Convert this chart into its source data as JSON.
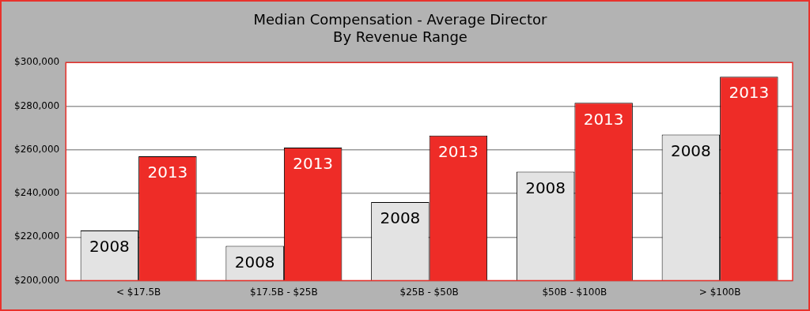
{
  "chart_data": {
    "type": "bar",
    "title": "Median Compensation - Average Director\nBy Revenue Range",
    "categories": [
      "< $17.5B",
      "$17.5B - $25B",
      "$25B - $50B",
      "$50B - $100B",
      "> $100B"
    ],
    "series": [
      {
        "name": "2008",
        "color": "#e3e3e3",
        "values": [
          223000,
          216000,
          236000,
          250000,
          267000
        ]
      },
      {
        "name": "2013",
        "color": "#ee2c27",
        "values": [
          257000,
          261000,
          266500,
          281500,
          293500
        ]
      }
    ],
    "ylim": [
      200000,
      300000
    ],
    "yticks": [
      {
        "value": 200000,
        "label": "$200,000"
      },
      {
        "value": 220000,
        "label": "$220,000"
      },
      {
        "value": 240000,
        "label": "$240,000"
      },
      {
        "value": 260000,
        "label": "$260,000"
      },
      {
        "value": 280000,
        "label": "$280,000"
      },
      {
        "value": 300000,
        "label": "$300,000"
      }
    ],
    "grid": "y",
    "legend": false
  }
}
